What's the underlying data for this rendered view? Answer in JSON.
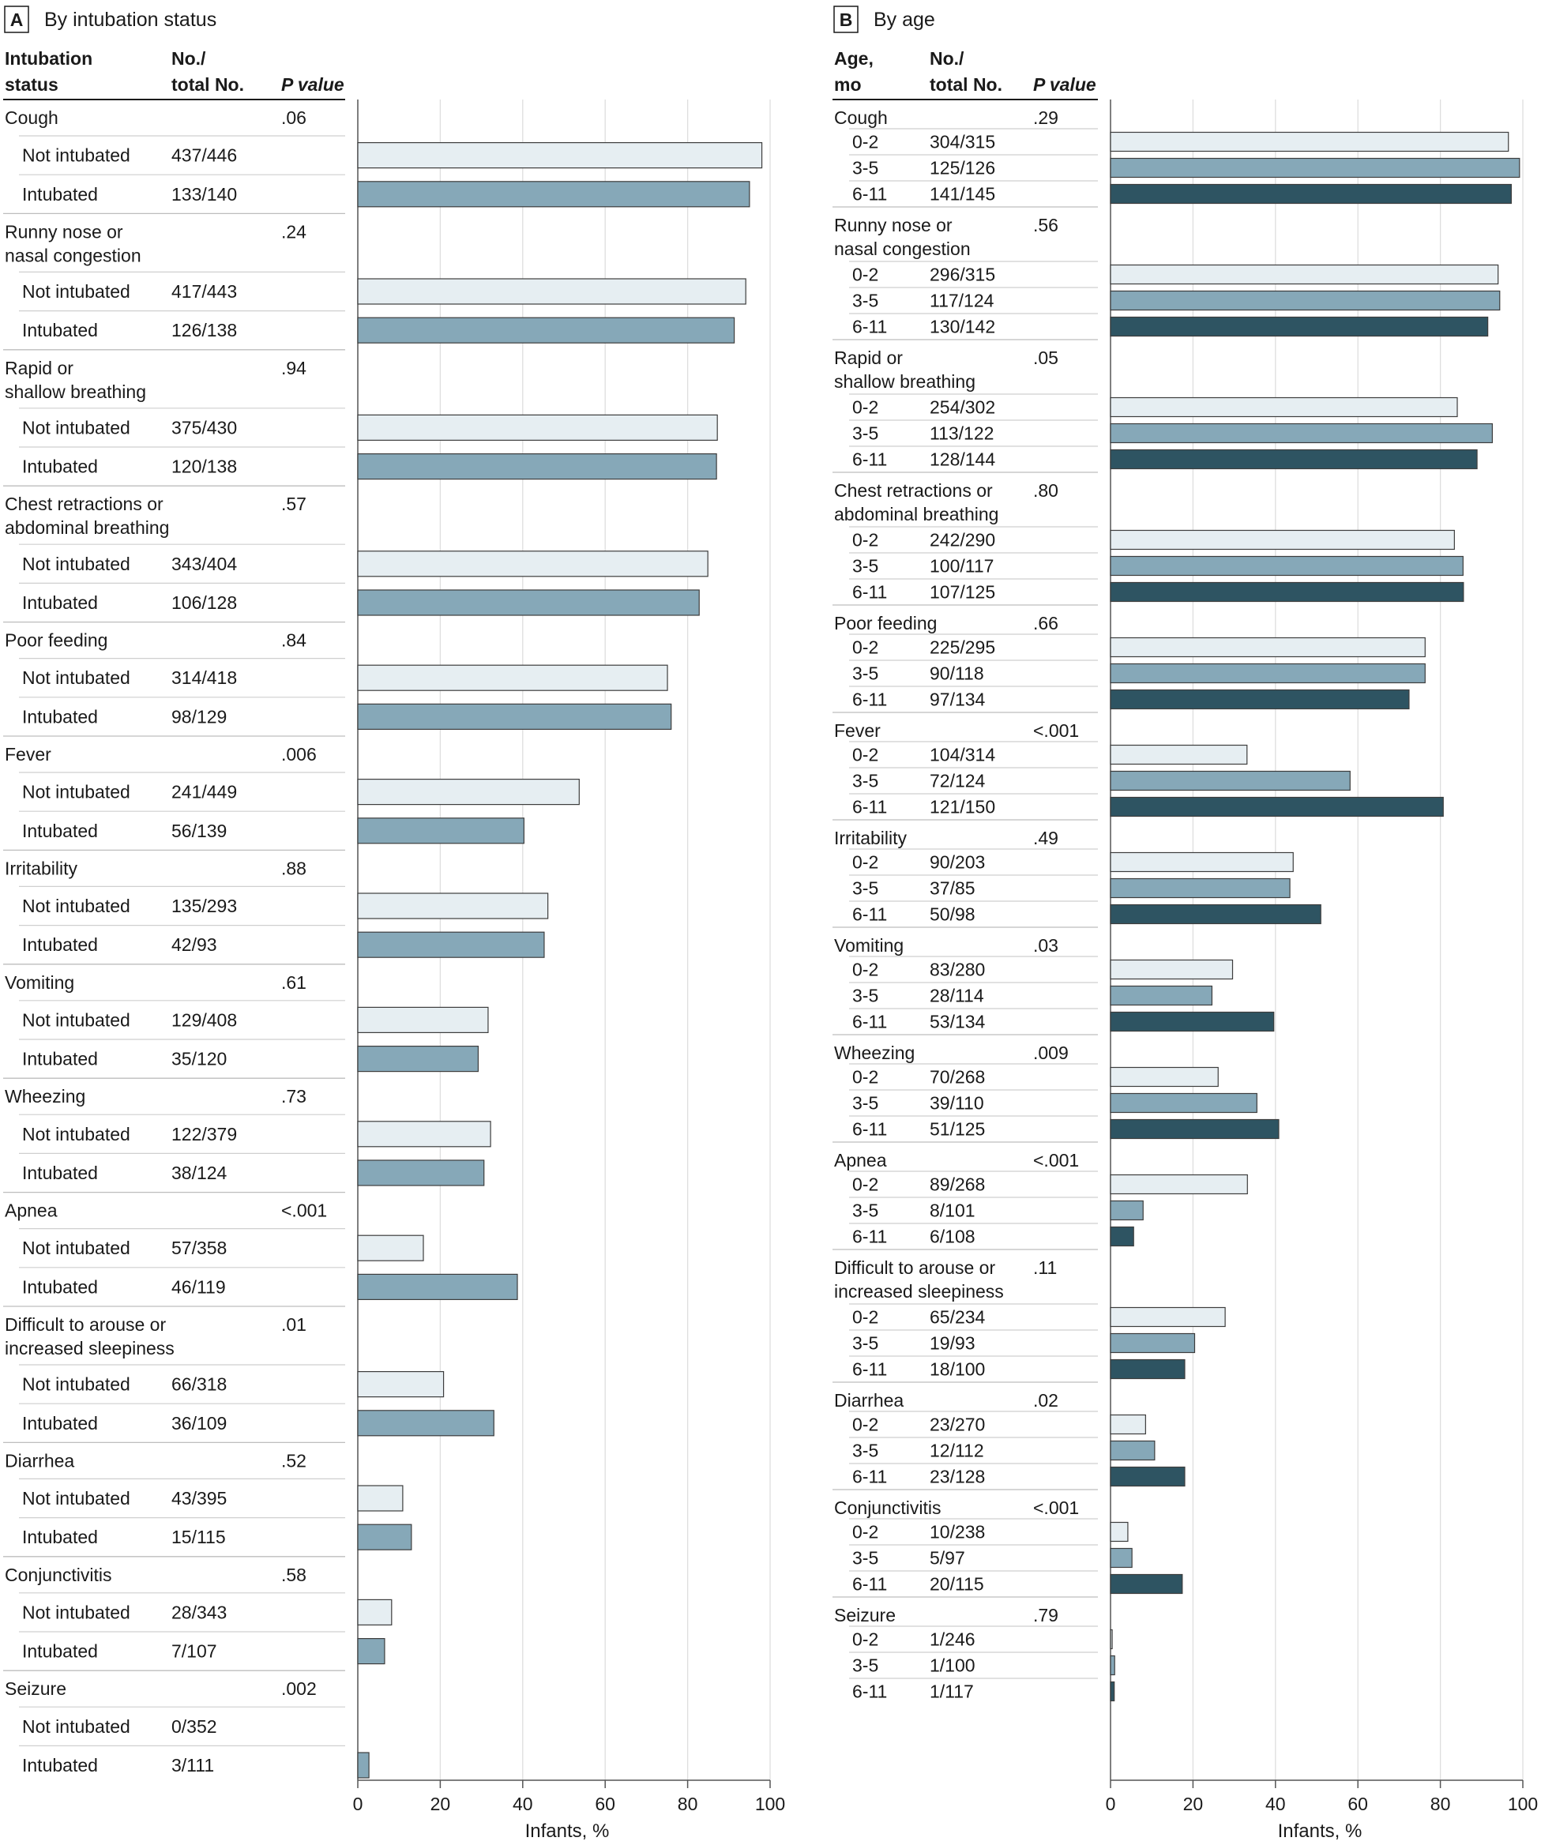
{
  "colors": {
    "not_intubated": "#e6eef2",
    "intubated": "#86a8b8",
    "age_0_2": "#e6eef2",
    "age_3_5": "#86a8b8",
    "age_6_11": "#2e5462",
    "outline": "#3d3d3d"
  },
  "chart_data": [
    {
      "type": "bar",
      "orientation": "horizontal",
      "panel_letter": "A",
      "title": "By intubation status",
      "xlabel": "Infants, %",
      "xlim": [
        0,
        100
      ],
      "xticks": [
        "0",
        "20",
        "40",
        "60",
        "80",
        "100"
      ],
      "headers": {
        "col1": [
          "Intubation",
          "status"
        ],
        "col2": [
          "No./",
          "total No."
        ],
        "col3": "P value"
      },
      "groups": [
        {
          "name": [
            "Cough"
          ],
          "p": ".06",
          "rows": [
            {
              "label": "Not intubated",
              "n": "437/446",
              "value": 98.0
            },
            {
              "label": "Intubated",
              "n": "133/140",
              "value": 95.0
            }
          ]
        },
        {
          "name": [
            "Runny nose or",
            "nasal congestion"
          ],
          "p": ".24",
          "rows": [
            {
              "label": "Not intubated",
              "n": "417/443",
              "value": 94.1
            },
            {
              "label": "Intubated",
              "n": "126/138",
              "value": 91.3
            }
          ]
        },
        {
          "name": [
            "Rapid or",
            "shallow breathing"
          ],
          "p": ".94",
          "rows": [
            {
              "label": "Not intubated",
              "n": "375/430",
              "value": 87.2
            },
            {
              "label": "Intubated",
              "n": "120/138",
              "value": 87.0
            }
          ]
        },
        {
          "name": [
            "Chest retractions or",
            "abdominal breathing"
          ],
          "p": ".57",
          "rows": [
            {
              "label": "Not intubated",
              "n": "343/404",
              "value": 84.9
            },
            {
              "label": "Intubated",
              "n": "106/128",
              "value": 82.8
            }
          ]
        },
        {
          "name": [
            "Poor feeding"
          ],
          "p": ".84",
          "rows": [
            {
              "label": "Not intubated",
              "n": "314/418",
              "value": 75.1
            },
            {
              "label": "Intubated",
              "n": "98/129",
              "value": 76.0
            }
          ]
        },
        {
          "name": [
            "Fever"
          ],
          "p": ".006",
          "rows": [
            {
              "label": "Not intubated",
              "n": "241/449",
              "value": 53.7
            },
            {
              "label": "Intubated",
              "n": "56/139",
              "value": 40.3
            }
          ]
        },
        {
          "name": [
            "Irritability"
          ],
          "p": ".88",
          "rows": [
            {
              "label": "Not intubated",
              "n": "135/293",
              "value": 46.1
            },
            {
              "label": "Intubated",
              "n": "42/93",
              "value": 45.2
            }
          ]
        },
        {
          "name": [
            "Vomiting"
          ],
          "p": ".61",
          "rows": [
            {
              "label": "Not intubated",
              "n": "129/408",
              "value": 31.6
            },
            {
              "label": "Intubated",
              "n": "35/120",
              "value": 29.2
            }
          ]
        },
        {
          "name": [
            "Wheezing"
          ],
          "p": ".73",
          "rows": [
            {
              "label": "Not intubated",
              "n": "122/379",
              "value": 32.2
            },
            {
              "label": "Intubated",
              "n": "38/124",
              "value": 30.6
            }
          ]
        },
        {
          "name": [
            "Apnea"
          ],
          "p": "<.001",
          "rows": [
            {
              "label": "Not intubated",
              "n": "57/358",
              "value": 15.9
            },
            {
              "label": "Intubated",
              "n": "46/119",
              "value": 38.7
            }
          ]
        },
        {
          "name": [
            "Difficult to arouse or",
            "increased sleepiness"
          ],
          "p": ".01",
          "rows": [
            {
              "label": "Not intubated",
              "n": "66/318",
              "value": 20.8
            },
            {
              "label": "Intubated",
              "n": "36/109",
              "value": 33.0
            }
          ]
        },
        {
          "name": [
            "Diarrhea"
          ],
          "p": ".52",
          "rows": [
            {
              "label": "Not intubated",
              "n": "43/395",
              "value": 10.9
            },
            {
              "label": "Intubated",
              "n": "15/115",
              "value": 13.0
            }
          ]
        },
        {
          "name": [
            "Conjunctivitis"
          ],
          "p": ".58",
          "rows": [
            {
              "label": "Not intubated",
              "n": "28/343",
              "value": 8.2
            },
            {
              "label": "Intubated",
              "n": "7/107",
              "value": 6.5
            }
          ]
        },
        {
          "name": [
            "Seizure"
          ],
          "p": ".002",
          "rows": [
            {
              "label": "Not intubated",
              "n": "0/352",
              "value": 0.0
            },
            {
              "label": "Intubated",
              "n": "3/111",
              "value": 2.7
            }
          ]
        }
      ]
    },
    {
      "type": "bar",
      "orientation": "horizontal",
      "panel_letter": "B",
      "title": "By age",
      "xlabel": "Infants, %",
      "xlim": [
        0,
        100
      ],
      "xticks": [
        "0",
        "20",
        "40",
        "60",
        "80",
        "100"
      ],
      "headers": {
        "col1": [
          "Age,",
          "mo"
        ],
        "col2": [
          "No./",
          "total No."
        ],
        "col3": "P value"
      },
      "groups": [
        {
          "name": [
            "Cough"
          ],
          "p": ".29",
          "rows": [
            {
              "label": "0-2",
              "n": "304/315",
              "value": 96.5
            },
            {
              "label": "3-5",
              "n": "125/126",
              "value": 99.2
            },
            {
              "label": "6-11",
              "n": "141/145",
              "value": 97.2
            }
          ]
        },
        {
          "name": [
            "Runny nose or",
            "nasal congestion"
          ],
          "p": ".56",
          "rows": [
            {
              "label": "0-2",
              "n": "296/315",
              "value": 94.0
            },
            {
              "label": "3-5",
              "n": "117/124",
              "value": 94.4
            },
            {
              "label": "6-11",
              "n": "130/142",
              "value": 91.5
            }
          ]
        },
        {
          "name": [
            "Rapid or",
            "shallow breathing"
          ],
          "p": ".05",
          "rows": [
            {
              "label": "0-2",
              "n": "254/302",
              "value": 84.1
            },
            {
              "label": "3-5",
              "n": "113/122",
              "value": 92.6
            },
            {
              "label": "6-11",
              "n": "128/144",
              "value": 88.9
            }
          ]
        },
        {
          "name": [
            "Chest retractions or",
            "abdominal breathing"
          ],
          "p": ".80",
          "rows": [
            {
              "label": "0-2",
              "n": "242/290",
              "value": 83.4
            },
            {
              "label": "3-5",
              "n": "100/117",
              "value": 85.5
            },
            {
              "label": "6-11",
              "n": "107/125",
              "value": 85.6
            }
          ]
        },
        {
          "name": [
            "Poor feeding"
          ],
          "p": ".66",
          "rows": [
            {
              "label": "0-2",
              "n": "225/295",
              "value": 76.3
            },
            {
              "label": "3-5",
              "n": "90/118",
              "value": 76.3
            },
            {
              "label": "6-11",
              "n": "97/134",
              "value": 72.4
            }
          ]
        },
        {
          "name": [
            "Fever"
          ],
          "p": "<.001",
          "rows": [
            {
              "label": "0-2",
              "n": "104/314",
              "value": 33.1
            },
            {
              "label": "3-5",
              "n": "72/124",
              "value": 58.1
            },
            {
              "label": "6-11",
              "n": "121/150",
              "value": 80.7
            }
          ]
        },
        {
          "name": [
            "Irritability"
          ],
          "p": ".49",
          "rows": [
            {
              "label": "0-2",
              "n": "90/203",
              "value": 44.3
            },
            {
              "label": "3-5",
              "n": "37/85",
              "value": 43.5
            },
            {
              "label": "6-11",
              "n": "50/98",
              "value": 51.0
            }
          ]
        },
        {
          "name": [
            "Vomiting"
          ],
          "p": ".03",
          "rows": [
            {
              "label": "0-2",
              "n": "83/280",
              "value": 29.6
            },
            {
              "label": "3-5",
              "n": "28/114",
              "value": 24.6
            },
            {
              "label": "6-11",
              "n": "53/134",
              "value": 39.6
            }
          ]
        },
        {
          "name": [
            "Wheezing"
          ],
          "p": ".009",
          "rows": [
            {
              "label": "0-2",
              "n": "70/268",
              "value": 26.1
            },
            {
              "label": "3-5",
              "n": "39/110",
              "value": 35.5
            },
            {
              "label": "6-11",
              "n": "51/125",
              "value": 40.8
            }
          ]
        },
        {
          "name": [
            "Apnea"
          ],
          "p": "<.001",
          "rows": [
            {
              "label": "0-2",
              "n": "89/268",
              "value": 33.2
            },
            {
              "label": "3-5",
              "n": "8/101",
              "value": 7.9
            },
            {
              "label": "6-11",
              "n": "6/108",
              "value": 5.6
            }
          ]
        },
        {
          "name": [
            "Difficult to arouse or",
            "increased sleepiness"
          ],
          "p": ".11",
          "rows": [
            {
              "label": "0-2",
              "n": "65/234",
              "value": 27.8
            },
            {
              "label": "3-5",
              "n": "19/93",
              "value": 20.4
            },
            {
              "label": "6-11",
              "n": "18/100",
              "value": 18.0
            }
          ]
        },
        {
          "name": [
            "Diarrhea"
          ],
          "p": ".02",
          "rows": [
            {
              "label": "0-2",
              "n": "23/270",
              "value": 8.5
            },
            {
              "label": "3-5",
              "n": "12/112",
              "value": 10.7
            },
            {
              "label": "6-11",
              "n": "23/128",
              "value": 18.0
            }
          ]
        },
        {
          "name": [
            "Conjunctivitis"
          ],
          "p": "<.001",
          "rows": [
            {
              "label": "0-2",
              "n": "10/238",
              "value": 4.2
            },
            {
              "label": "3-5",
              "n": "5/97",
              "value": 5.2
            },
            {
              "label": "6-11",
              "n": "20/115",
              "value": 17.4
            }
          ]
        },
        {
          "name": [
            "Seizure"
          ],
          "p": ".79",
          "rows": [
            {
              "label": "0-2",
              "n": "1/246",
              "value": 0.4
            },
            {
              "label": "3-5",
              "n": "1/100",
              "value": 1.0
            },
            {
              "label": "6-11",
              "n": "1/117",
              "value": 0.9
            }
          ]
        }
      ]
    }
  ]
}
